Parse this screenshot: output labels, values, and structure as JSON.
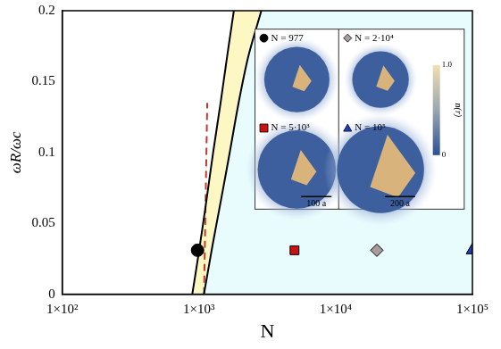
{
  "chart_data": {
    "type": "scatter",
    "x_label": "N",
    "y_label": "ωR/ωc",
    "log": "x",
    "grid": false,
    "xlim": [
      100,
      100000
    ],
    "xticks": [
      {
        "value": 100,
        "label": "1×10²"
      },
      {
        "value": 1000,
        "label": "1×10³"
      },
      {
        "value": 10000,
        "label": "1×10⁴"
      },
      {
        "value": 100000,
        "label": "1×10⁵"
      }
    ],
    "ylim": [
      0,
      0.2
    ],
    "yticks": [
      0,
      0.05,
      0.1,
      0.15,
      0.2
    ],
    "series": [
      {
        "x": [
          894,
          1000,
          1130,
          1270,
          1440,
          1620,
          1800
        ],
        "values": [
          0,
          0.03,
          0.065,
          0.1,
          0.135,
          0.17,
          0.2
        ],
        "color": "#000000",
        "line_style": "solid"
      },
      {
        "x": [
          1088,
          1260,
          1460,
          1680,
          1950,
          2300,
          2860
        ],
        "values": [
          0,
          0.035,
          0.068,
          0.1,
          0.135,
          0.168,
          0.2
        ],
        "color": "#000000",
        "line_style": "solid"
      },
      {
        "x": [
          1090,
          1150
        ],
        "values": [
          0,
          0.135
        ],
        "color": "#c0392b",
        "line_style": "dashed"
      },
      {
        "x": [
          977
        ],
        "values": [
          0.031
        ],
        "color": "#000000",
        "marker": "circle"
      },
      {
        "x": [
          5000
        ],
        "values": [
          0.031
        ],
        "color": "#cc1111",
        "marker": "square"
      },
      {
        "x": [
          20000
        ],
        "values": [
          0.031
        ],
        "color": "#a89c9c",
        "marker": "diamond"
      },
      {
        "x": [
          100000
        ],
        "values": [
          0.031
        ],
        "color": "#1a3fc4",
        "marker": "triangle"
      }
    ],
    "inset": {
      "panels": [
        {
          "label": "N = 977",
          "marker": "circle",
          "color": "#000000"
        },
        {
          "label": "N = 2·10⁴",
          "marker": "diamond",
          "color": "#a89c9c"
        },
        {
          "label": "N = 5·10³",
          "marker": "square",
          "color": "#cc1111",
          "scale_bar": "100 a"
        },
        {
          "label": "N = 10⁵",
          "marker": "triangle",
          "color": "#1a3fc4",
          "scale_bar": "200 a"
        }
      ],
      "colorbar": {
        "range": [
          0,
          1
        ],
        "ticks": [
          {
            "value": 0,
            "label": "0"
          },
          {
            "value": 1,
            "label": "1.0"
          }
        ],
        "label": "n(r)"
      }
    }
  }
}
